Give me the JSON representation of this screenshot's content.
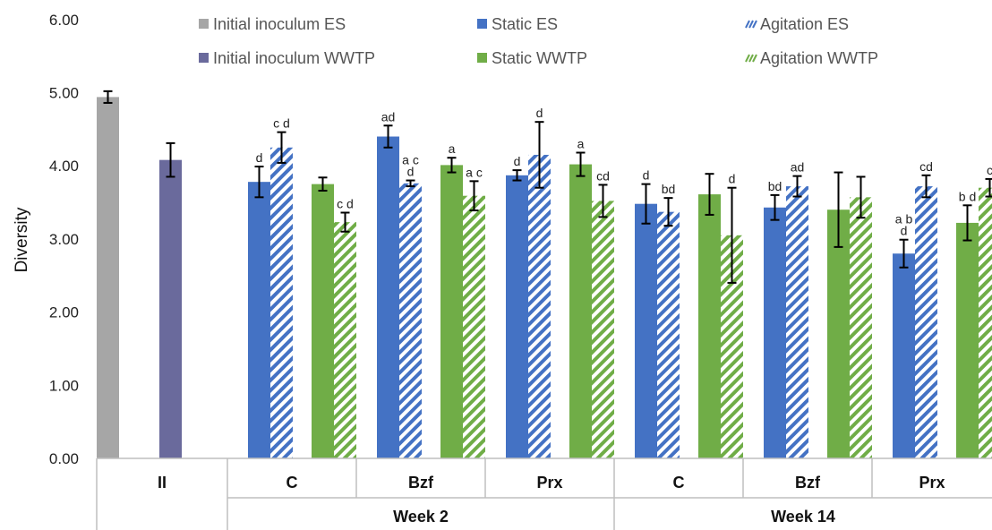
{
  "chart_data": {
    "type": "bar",
    "ylabel": "Diversity",
    "ylim": [
      0,
      6
    ],
    "y_ticks": [
      "0.00",
      "1.00",
      "2.00",
      "3.00",
      "4.00",
      "5.00",
      "6.00"
    ],
    "legend_position": "top",
    "categories": [
      "II",
      "C",
      "Bzf",
      "Prx",
      "C",
      "Bzf",
      "Prx"
    ],
    "groups": [
      {
        "label": "Week 2",
        "categories": [
          1,
          2,
          3
        ]
      },
      {
        "label": "Week 14",
        "categories": [
          4,
          5,
          6
        ]
      }
    ],
    "legend_order": [
      0,
      1,
      2,
      3,
      4,
      5
    ],
    "series": [
      {
        "name": "Initial inoculum ES",
        "color": "#a6a6a6",
        "pattern": "solid",
        "values": [
          4.94,
          null,
          null,
          null,
          null,
          null,
          null
        ],
        "errors": [
          0.08,
          null,
          null,
          null,
          null,
          null,
          null
        ],
        "labels": [
          "",
          "",
          "",
          "",
          "",
          "",
          ""
        ]
      },
      {
        "name": "Initial inoculum WWTP",
        "color": "#6a6a9c",
        "pattern": "solid",
        "values": [
          4.08,
          null,
          null,
          null,
          null,
          null,
          null
        ],
        "errors": [
          0.23,
          null,
          null,
          null,
          null,
          null,
          null
        ],
        "labels": [
          "",
          "",
          "",
          "",
          "",
          "",
          ""
        ]
      },
      {
        "name": "Static ES",
        "color": "#4472c4",
        "pattern": "solid",
        "values": [
          null,
          3.78,
          4.4,
          3.87,
          3.48,
          3.43,
          2.8
        ],
        "errors": [
          null,
          0.21,
          0.15,
          0.07,
          0.27,
          0.17,
          0.19
        ],
        "labels": [
          "",
          "d",
          "ad",
          "d",
          "d",
          "bd",
          "a b\nd"
        ]
      },
      {
        "name": "Static WWTP",
        "color": "#70ad47",
        "pattern": "solid",
        "values": [
          null,
          3.75,
          4.01,
          4.02,
          3.61,
          3.4,
          3.22
        ],
        "errors": [
          null,
          0.09,
          0.1,
          0.16,
          0.28,
          0.51,
          0.24
        ],
        "labels": [
          "",
          "",
          "a",
          "a",
          "",
          "",
          "b d"
        ]
      },
      {
        "name": "Agitation ES",
        "color": "#4472c4",
        "pattern": "hatch",
        "values": [
          null,
          4.25,
          3.76,
          4.15,
          3.37,
          3.72,
          3.72
        ],
        "errors": [
          null,
          0.21,
          0.04,
          0.45,
          0.19,
          0.14,
          0.15
        ],
        "labels": [
          "",
          "c d",
          "a c\nd",
          "d",
          "bd",
          "ad",
          "cd"
        ]
      },
      {
        "name": "Agitation WWTP",
        "color": "#70ad47",
        "pattern": "hatch",
        "values": [
          null,
          3.23,
          3.59,
          3.52,
          3.05,
          3.57,
          3.7
        ],
        "errors": [
          null,
          0.13,
          0.2,
          0.22,
          0.65,
          0.28,
          0.12
        ],
        "labels": [
          "",
          "c d",
          "a c",
          "cd",
          "d",
          "",
          "c"
        ]
      }
    ]
  }
}
